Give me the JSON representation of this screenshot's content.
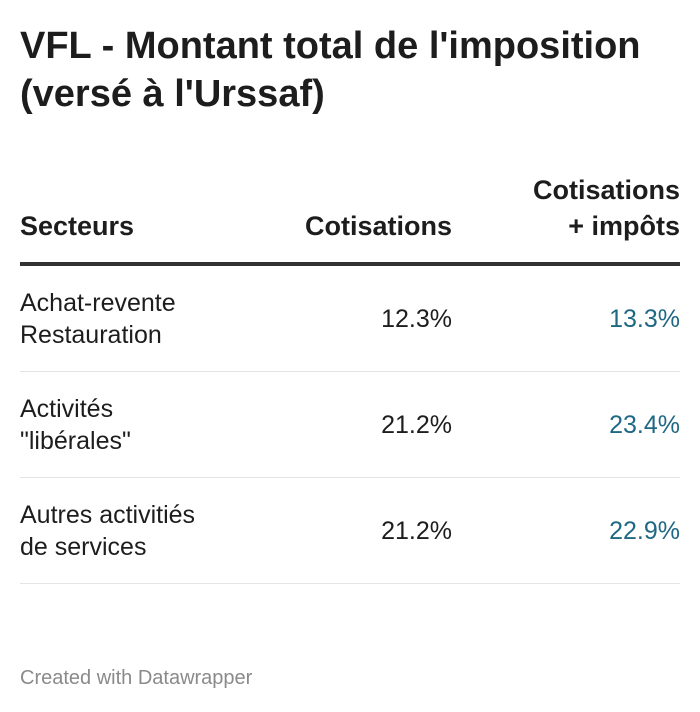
{
  "title": "VFL - Montant total de l'imposition (versé à l'Urssaf)",
  "colors": {
    "text": "#1d1d1d",
    "accent_column": "#1f6883",
    "header_rule": "#333333",
    "row_rule": "#e4e4e4",
    "footer": "#8a8a8a"
  },
  "chart_data": {
    "type": "table",
    "title": "VFL - Montant total de l'imposition (versé à l'Urssaf)",
    "columns": [
      {
        "label": "Secteurs"
      },
      {
        "label_lines": [
          "Cotisations"
        ]
      },
      {
        "label_lines": [
          "Cotisations",
          "+ impôts"
        ]
      }
    ],
    "rows": [
      {
        "secteur_lines": [
          "Achat-revente",
          "Restauration"
        ],
        "cotisations": "12.3%",
        "cotisations_impots": "13.3%"
      },
      {
        "secteur_lines": [
          "Activités",
          "\"libérales\""
        ],
        "cotisations": "21.2%",
        "cotisations_impots": "23.4%"
      },
      {
        "secteur_lines": [
          "Autres activitiés",
          "de services"
        ],
        "cotisations": "21.2%",
        "cotisations_impots": "22.9%"
      }
    ],
    "values": {
      "cotisations": [
        12.3,
        21.2,
        21.2
      ],
      "cotisations_impots": [
        13.3,
        23.4,
        22.9
      ]
    },
    "unit": "%"
  },
  "footer": "Created with Datawrapper"
}
